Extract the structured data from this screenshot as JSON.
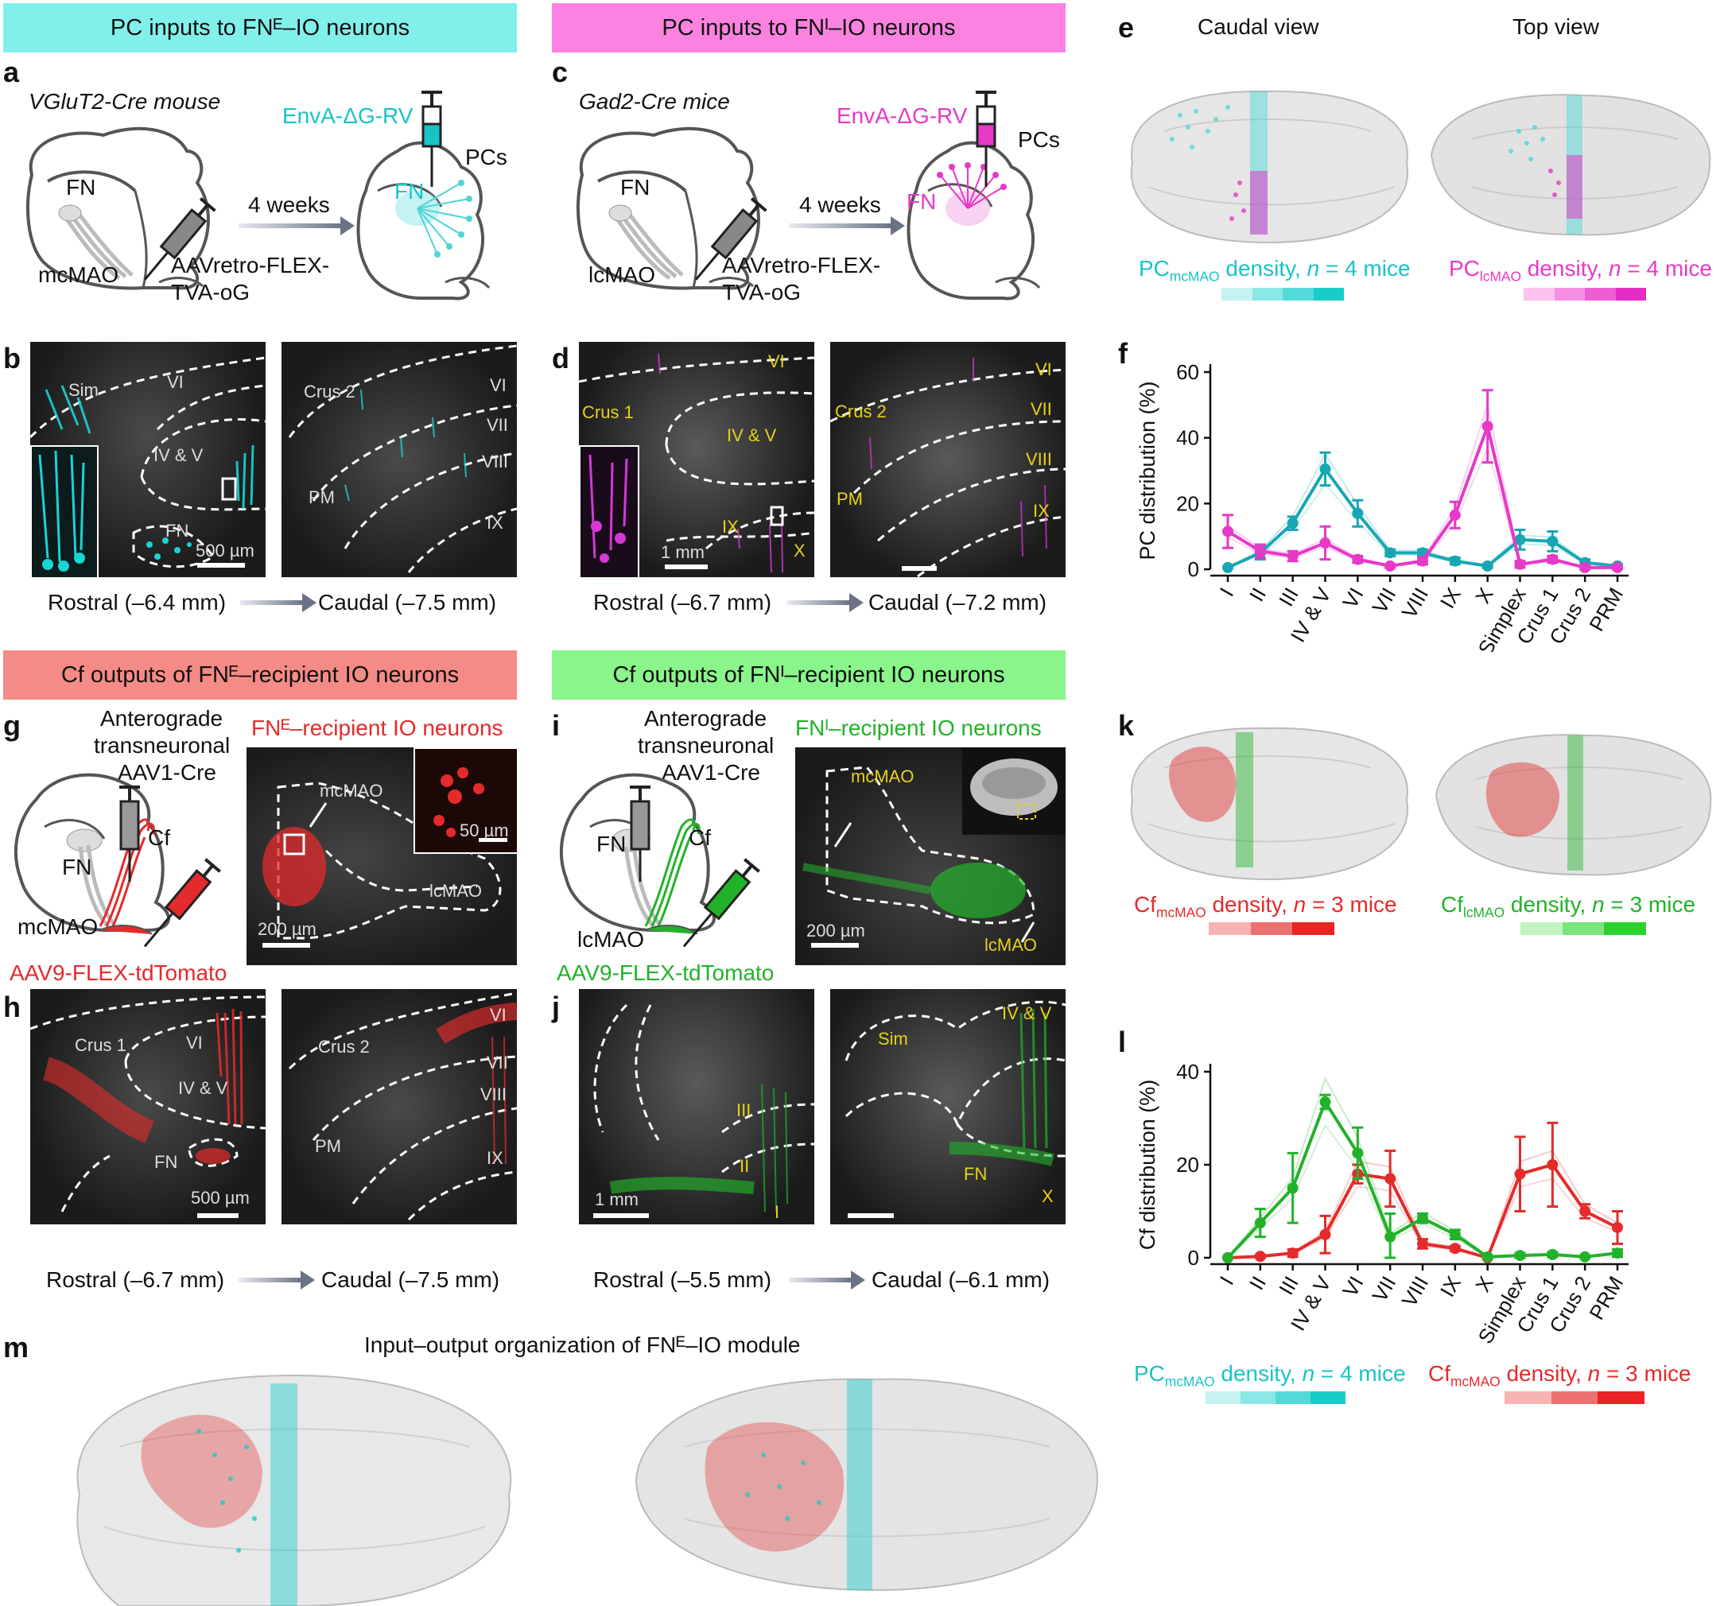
{
  "banners": {
    "a": "PC inputs to FNᴱ–IO neurons",
    "c": "PC inputs to FNᴵ–IO neurons",
    "g": "Cf outputs of FNᴱ–recipient IO neurons",
    "i": "Cf outputs of FNᴵ–recipient IO neurons"
  },
  "panels": {
    "a": {
      "letter": "a",
      "mouse": "VGluT2-Cre mouse",
      "virus": "EnvA-ΔG-RV",
      "pcs": "PCs",
      "fn": "FN",
      "fn2": "FN",
      "nucleus": "mcMAO",
      "aav": "AAVretro-FLEX-",
      "aav2": "TVA-oG",
      "weeks": "4 weeks"
    },
    "b": {
      "letter": "b",
      "labels": [
        "Sim",
        "VI",
        "IV & V",
        "FN",
        "Crus 2",
        "VI",
        "VII",
        "VIII",
        "PM",
        "IX"
      ],
      "scale": "500 µm",
      "rostral": "Rostral (–6.4 mm)",
      "caudal": "Caudal (–7.5 mm)"
    },
    "c": {
      "letter": "c",
      "mouse": "Gad2-Cre mice",
      "virus": "EnvA-ΔG-RV",
      "pcs": "PCs",
      "fn": "FN",
      "fn2": "FN",
      "nucleus": "lcMAO",
      "aav": "AAVretro-FLEX-",
      "aav2": "TVA-oG",
      "weeks": "4 weeks"
    },
    "d": {
      "letter": "d",
      "labels": [
        "VI",
        "Crus 1",
        "IV & V",
        "IX",
        "X",
        "Crus 2",
        "VI",
        "VII",
        "VIII",
        "PM",
        "IX"
      ],
      "scale": "1 mm",
      "rostral": "Rostral (–6.7 mm)",
      "caudal": "Caudal (–7.2 mm)"
    },
    "e": {
      "letter": "e",
      "caudal": "Caudal view",
      "top": "Top view",
      "leg1": "PC",
      "leg1sub": "mcMAO",
      "leg1rest": " density, ",
      "n1": "n",
      "n1rest": " = 4 mice",
      "leg2": "PC",
      "leg2sub": "lcMAO",
      "leg2rest": " density, ",
      "n2": "n",
      "n2rest": " = 4 mice"
    },
    "f": {
      "letter": "f"
    },
    "g": {
      "letter": "g",
      "title": "Anterograde",
      "title2": "transneuronal",
      "title3": "AAV1-Cre",
      "cf": "Cf",
      "fn": "FN",
      "nucleus": "mcMAO",
      "aav": "AAV9-FLEX-tdTomato",
      "micro_title": "FNᴱ–recipient IO neurons",
      "m1": "mcMAO",
      "m2": "lcMAO",
      "scale1": "50 µm",
      "scale2": "200 µm"
    },
    "h": {
      "letter": "h",
      "labels": [
        "Crus 1",
        "VI",
        "IV & V",
        "FN",
        "Crus 2",
        "VI",
        "VII",
        "VIII",
        "PM",
        "IX"
      ],
      "scale": "500 µm",
      "rostral": "Rostral (–6.7 mm)",
      "caudal": "Caudal (–7.5 mm)"
    },
    "i": {
      "letter": "i",
      "title": "Anterograde",
      "title2": "transneuronal",
      "title3": "AAV1-Cre",
      "cf": "Cf",
      "fn": "FN",
      "nucleus": "lcMAO",
      "aav": "AAV9-FLEX-tdTomato",
      "micro_title": "FNᴵ–recipient IO neurons",
      "m1": "mcMAO",
      "m2": "lcMAO",
      "scale2": "200 µm"
    },
    "j": {
      "letter": "j",
      "labels": [
        "III",
        "II",
        "I",
        "Sim",
        "IV & V",
        "FN",
        "X"
      ],
      "scale": "1 mm",
      "rostral": "Rostral (–5.5 mm)",
      "caudal": "Caudal (–6.1 mm)"
    },
    "k": {
      "letter": "k",
      "leg1": "Cf",
      "leg1sub": "mcMAO",
      "leg1rest": " density, ",
      "n1": "n",
      "n1rest": " = 3 mice",
      "leg2": "Cf",
      "leg2sub": "lcMAO",
      "leg2rest": " density, ",
      "n2": "n",
      "n2rest": " = 3 mice"
    },
    "l": {
      "letter": "l"
    },
    "m": {
      "letter": "m",
      "title": "Input–output organization of FNᴱ–IO module",
      "leg1": "PC",
      "leg1sub": "mcMAO",
      "leg1rest": " density, ",
      "n1": "n",
      "n1rest": " = 4 mice",
      "leg2": "Cf",
      "leg2sub": "mcMAO",
      "leg2rest": " density, ",
      "n2": "n",
      "n2rest": " = 3 mice"
    }
  },
  "colors": {
    "cyan": "#19a6b4",
    "cyanLight": "#4fd5d5",
    "magenta": "#e639c7",
    "red": "#e32b2b",
    "green": "#22b22a",
    "bannerCyan": "#82f0ea",
    "bannerMagenta": "#fb82e0",
    "bannerRed": "#f58b86",
    "bannerGreen": "#89f58a"
  },
  "chart_data": [
    {
      "type": "line",
      "panel": "f",
      "ylabel": "PC distribution (%)",
      "ylim": [
        0,
        60
      ],
      "yticks": [
        0,
        20,
        40,
        60
      ],
      "categories": [
        "I",
        "II",
        "III",
        "IV & V",
        "VI",
        "VII",
        "VIII",
        "IX",
        "X",
        "Simplex",
        "Crus 1",
        "Crus 2",
        "PRM"
      ],
      "series": [
        {
          "name": "PCmcMAO",
          "color": "#19a6b4",
          "values": [
            0.5,
            5,
            14,
            30.5,
            17,
            5,
            5,
            2.5,
            1,
            9,
            8.5,
            2,
            1
          ],
          "errors": [
            0,
            2,
            2,
            5,
            4,
            1,
            1,
            1,
            0.5,
            3,
            3,
            1,
            0.5
          ]
        },
        {
          "name": "PClcMAO",
          "color": "#e639c7",
          "values": [
            11.5,
            5.5,
            4,
            8,
            3,
            1,
            2.5,
            16.5,
            43.5,
            1.5,
            3,
            0.5,
            0.5
          ],
          "errors": [
            5,
            2,
            1.5,
            5,
            1,
            0.5,
            1,
            4,
            11,
            1,
            1,
            0.5,
            0.5
          ]
        }
      ]
    },
    {
      "type": "line",
      "panel": "l",
      "ylabel": "Cf distribution (%)",
      "ylim": [
        0,
        40
      ],
      "yticks": [
        0,
        20,
        40
      ],
      "categories": [
        "I",
        "II",
        "III",
        "IV & V",
        "VI",
        "VII",
        "VIII",
        "IX",
        "X",
        "Simplex",
        "Crus 1",
        "Crus 2",
        "PRM"
      ],
      "series": [
        {
          "name": "CfmcMAO",
          "color": "#e32b2b",
          "values": [
            0,
            0.3,
            1,
            5,
            18,
            17,
            3,
            2,
            0,
            18,
            20,
            10,
            6.5
          ],
          "errors": [
            0,
            0.3,
            0.8,
            4,
            2,
            6,
            1,
            0.5,
            0,
            8,
            9,
            1.5,
            3.5
          ]
        },
        {
          "name": "CflcMAO",
          "color": "#22b22a",
          "values": [
            0,
            7.5,
            15,
            33.5,
            22.5,
            4.5,
            8.5,
            5,
            0.2,
            0.5,
            0.7,
            0.2,
            1
          ],
          "errors": [
            0,
            3,
            7.5,
            1.5,
            5.5,
            5,
            1,
            1,
            0.2,
            0.5,
            0.5,
            0.2,
            0.8
          ]
        }
      ]
    }
  ]
}
